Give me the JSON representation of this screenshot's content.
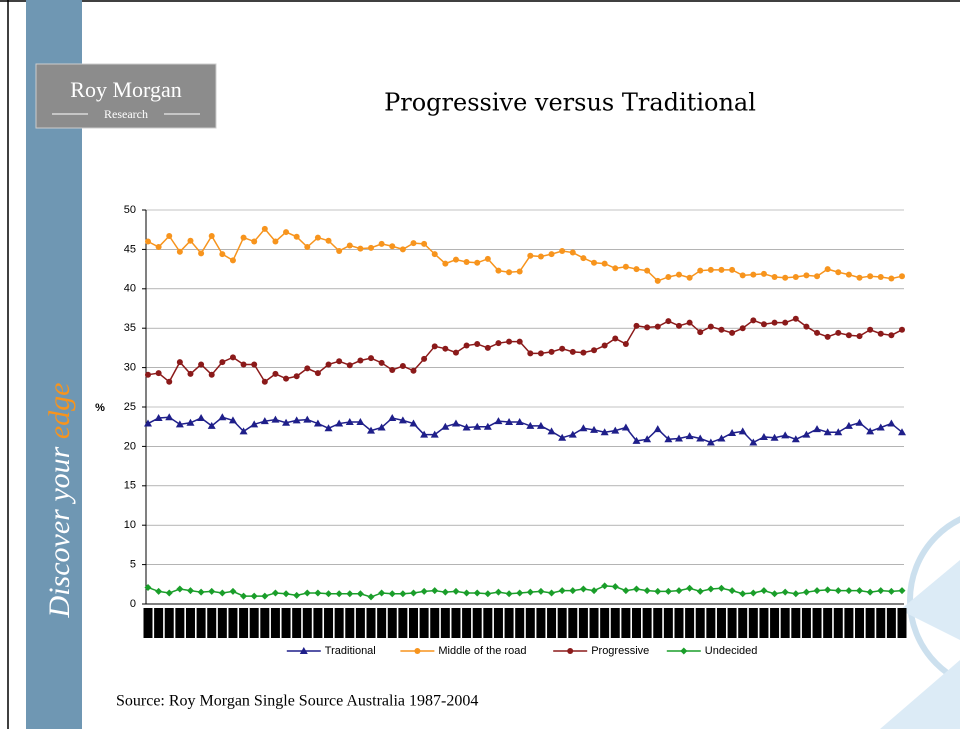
{
  "logo": {
    "name": "Roy Morgan",
    "subtitle": "Research"
  },
  "sidebar": {
    "text": "Discover your ",
    "accent": "edge"
  },
  "source": "Source: Roy Morgan Single Source Australia 1987-2004",
  "chart_data": {
    "type": "line",
    "title": "Progressive versus Traditional",
    "y_label": "%",
    "categories": [
      null,
      null,
      null,
      null,
      null,
      null,
      null,
      null,
      null,
      null,
      null,
      null,
      null,
      null,
      null,
      null,
      null,
      null,
      null,
      null,
      null,
      null,
      null,
      null,
      null,
      null,
      null,
      null,
      null,
      null,
      null,
      null,
      null,
      null,
      null,
      null,
      null,
      null,
      null,
      null,
      null,
      null,
      null,
      null,
      null,
      null,
      null,
      null,
      null,
      null,
      null,
      null,
      null,
      null,
      null,
      null,
      null,
      null,
      null,
      null,
      null,
      null,
      null,
      null,
      null,
      null,
      null,
      null,
      null,
      null,
      null,
      null
    ],
    "series": [
      {
        "name": "Traditional",
        "color": "#1f1f8a",
        "marker": "triangle",
        "values": [
          22.9,
          23.6,
          23.7,
          22.8,
          23.0,
          23.6,
          22.6,
          23.7,
          23.3,
          21.9,
          22.8,
          23.2,
          23.4,
          23.0,
          23.3,
          23.4,
          22.9,
          22.3,
          22.9,
          23.1,
          23.1,
          22.0,
          22.4,
          23.6,
          23.3,
          22.9,
          21.5,
          21.5,
          22.5,
          22.9,
          22.4,
          22.5,
          22.5,
          23.2,
          23.1,
          23.1,
          22.6,
          22.6,
          21.9,
          21.1,
          21.5,
          22.3,
          22.1,
          21.8,
          22.0,
          22.4,
          20.7,
          20.9,
          22.2,
          20.9,
          21.0,
          21.3,
          21.0,
          20.5,
          21.0,
          21.7,
          21.9,
          20.5,
          21.2,
          21.1,
          21.4,
          20.9,
          21.5,
          22.2,
          21.8,
          21.8,
          22.6,
          23.0,
          21.9,
          22.4,
          22.9,
          21.8
        ]
      },
      {
        "name": "Middle of the road",
        "color": "#f7941d",
        "marker": "circle",
        "values": [
          46.0,
          45.3,
          46.7,
          44.7,
          46.1,
          44.5,
          46.7,
          44.4,
          43.6,
          46.5,
          46.0,
          47.6,
          46.0,
          47.2,
          46.6,
          45.3,
          46.5,
          46.1,
          44.8,
          45.5,
          45.1,
          45.2,
          45.7,
          45.4,
          45.0,
          45.8,
          45.7,
          44.4,
          43.2,
          43.7,
          43.4,
          43.3,
          43.8,
          42.3,
          42.1,
          42.2,
          44.2,
          44.1,
          44.4,
          44.8,
          44.6,
          43.9,
          43.3,
          43.2,
          42.6,
          42.8,
          42.5,
          42.3,
          41.0,
          41.5,
          41.8,
          41.4,
          42.3,
          42.4,
          42.4,
          42.4,
          41.7,
          41.8,
          41.9,
          41.5,
          41.4,
          41.5,
          41.7,
          41.6,
          42.5,
          42.1,
          41.8,
          41.4,
          41.6,
          41.5,
          41.3,
          41.6
        ]
      },
      {
        "name": "Progressive",
        "color": "#8b1a1a",
        "marker": "circle",
        "values": [
          29.1,
          29.3,
          28.2,
          30.7,
          29.2,
          30.4,
          29.1,
          30.7,
          31.3,
          30.4,
          30.4,
          28.2,
          29.2,
          28.6,
          28.9,
          29.9,
          29.3,
          30.4,
          30.8,
          30.3,
          30.9,
          31.2,
          30.6,
          29.7,
          30.2,
          29.6,
          31.1,
          32.7,
          32.4,
          31.9,
          32.8,
          33.0,
          32.5,
          33.1,
          33.3,
          33.3,
          31.8,
          31.8,
          32.0,
          32.4,
          32.0,
          31.9,
          32.2,
          32.8,
          33.7,
          33.0,
          35.3,
          35.1,
          35.2,
          35.9,
          35.3,
          35.7,
          34.5,
          35.2,
          34.8,
          34.4,
          35.0,
          36.0,
          35.5,
          35.7,
          35.7,
          36.2,
          35.2,
          34.4,
          33.9,
          34.4,
          34.1,
          34.0,
          34.8,
          34.3,
          34.1,
          34.8
        ]
      },
      {
        "name": "Undecided",
        "color": "#1a9e2a",
        "marker": "diamond",
        "values": [
          2.1,
          1.6,
          1.4,
          1.9,
          1.7,
          1.5,
          1.6,
          1.4,
          1.6,
          1.0,
          1.0,
          1.0,
          1.4,
          1.3,
          1.1,
          1.4,
          1.4,
          1.3,
          1.3,
          1.3,
          1.3,
          0.9,
          1.4,
          1.3,
          1.3,
          1.4,
          1.6,
          1.7,
          1.5,
          1.6,
          1.4,
          1.4,
          1.3,
          1.5,
          1.3,
          1.4,
          1.5,
          1.6,
          1.4,
          1.7,
          1.7,
          1.9,
          1.7,
          2.3,
          2.2,
          1.7,
          1.9,
          1.7,
          1.6,
          1.6,
          1.7,
          2.0,
          1.6,
          1.9,
          2.0,
          1.7,
          1.3,
          1.4,
          1.7,
          1.3,
          1.5,
          1.3,
          1.5,
          1.7,
          1.8,
          1.7,
          1.7,
          1.7,
          1.5,
          1.7,
          1.6,
          1.7
        ]
      }
    ],
    "ylim": [
      0,
      50
    ],
    "yticks": [
      0,
      5,
      10,
      15,
      20,
      25,
      30,
      35,
      40,
      45,
      50
    ],
    "grid": true,
    "legend": "bottom"
  }
}
